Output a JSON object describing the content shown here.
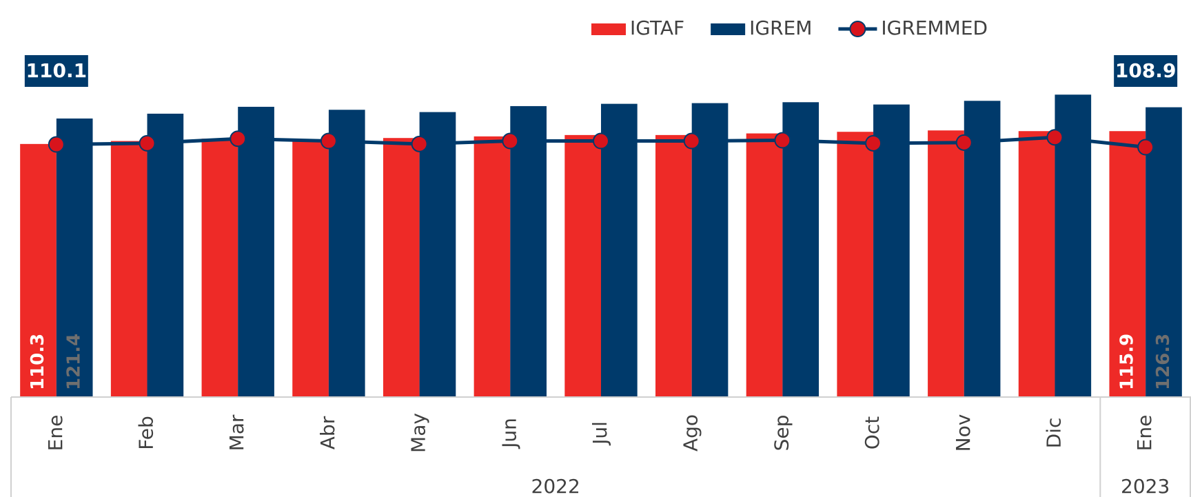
{
  "chart_data": {
    "type": "bar_line",
    "categories": [
      "Ene",
      "Feb",
      "Mar",
      "Abr",
      "May",
      "Jun",
      "Jul",
      "Ago",
      "Sep",
      "Oct",
      "Nov",
      "Dic",
      "Ene"
    ],
    "year_groups": [
      {
        "label": "2022",
        "size": 12
      },
      {
        "label": "2023",
        "size": 1
      }
    ],
    "series": [
      {
        "name": "IGTAF",
        "type": "bar",
        "color": "#ee2a27",
        "label_color": "#ffffff",
        "values": [
          110.3,
          111.6,
          112.6,
          112.3,
          112.9,
          113.6,
          114.2,
          114.2,
          114.9,
          115.6,
          116.2,
          115.9,
          115.9
        ]
      },
      {
        "name": "IGREM",
        "type": "bar",
        "color": "#003a6b",
        "label_color": "#6f6f6f",
        "values": [
          121.4,
          123.5,
          126.5,
          125.2,
          124.2,
          126.8,
          127.8,
          128.1,
          128.5,
          127.5,
          129.1,
          131.8,
          126.3
        ]
      },
      {
        "name": "IGREMMED",
        "type": "line",
        "color": "#003a6b",
        "marker_color": "#d7141c",
        "values": [
          110.1,
          110.6,
          112.6,
          111.6,
          110.3,
          111.6,
          111.6,
          111.6,
          111.9,
          110.6,
          110.9,
          113.2,
          108.9
        ]
      }
    ],
    "ylim": [
      0,
      140
    ],
    "grid": false
  }
}
